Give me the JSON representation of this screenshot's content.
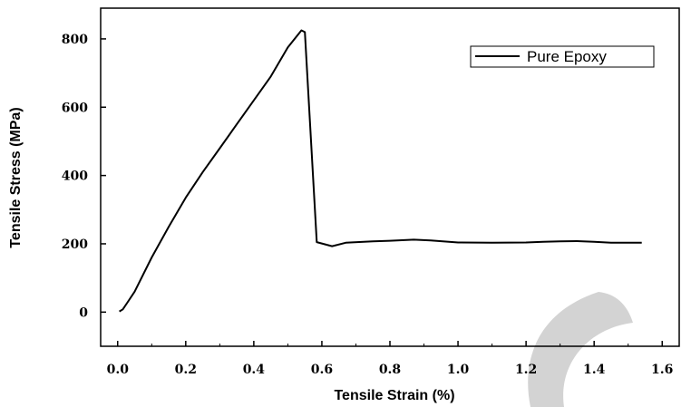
{
  "chart_data": {
    "type": "line",
    "xlabel": "Tensile Strain (%)",
    "ylabel": "Tensile Stress (MPa)",
    "xlim": [
      -0.05,
      1.65
    ],
    "ylim": [
      -100,
      890
    ],
    "x_ticks": [
      "0.0",
      "0.2",
      "0.4",
      "0.6",
      "0.8",
      "1.0",
      "1.2",
      "1.4",
      "1.6"
    ],
    "y_ticks": [
      "0",
      "200",
      "400",
      "600",
      "800"
    ],
    "grid": false,
    "legend_position": "top-right",
    "series": [
      {
        "name": "Pure Epoxy",
        "color": "#000000",
        "points": [
          [
            0.005,
            2
          ],
          [
            0.015,
            8
          ],
          [
            0.03,
            30
          ],
          [
            0.05,
            60
          ],
          [
            0.1,
            160
          ],
          [
            0.15,
            250
          ],
          [
            0.2,
            335
          ],
          [
            0.25,
            410
          ],
          [
            0.3,
            480
          ],
          [
            0.35,
            550
          ],
          [
            0.4,
            620
          ],
          [
            0.45,
            690
          ],
          [
            0.5,
            775
          ],
          [
            0.54,
            825
          ],
          [
            0.55,
            820
          ],
          [
            0.585,
            205
          ],
          [
            0.63,
            193
          ],
          [
            0.67,
            203
          ],
          [
            0.75,
            207
          ],
          [
            0.8,
            209
          ],
          [
            0.87,
            212
          ],
          [
            0.92,
            210
          ],
          [
            1.0,
            204
          ],
          [
            1.1,
            203
          ],
          [
            1.2,
            204
          ],
          [
            1.25,
            206
          ],
          [
            1.3,
            207
          ],
          [
            1.35,
            208
          ],
          [
            1.4,
            206
          ],
          [
            1.45,
            203
          ],
          [
            1.5,
            203
          ],
          [
            1.54,
            203
          ]
        ]
      }
    ],
    "watermark_color": "#d3d3d3"
  }
}
